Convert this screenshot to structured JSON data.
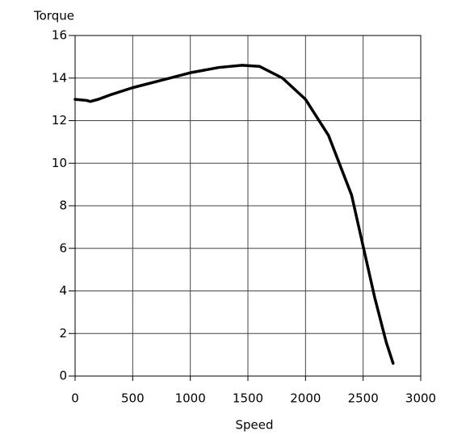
{
  "chart_data": {
    "type": "line",
    "xlabel": "Speed",
    "ylabel": "Torque",
    "x": [
      0,
      100,
      130,
      200,
      300,
      500,
      750,
      1000,
      1250,
      1450,
      1600,
      1800,
      2000,
      2200,
      2400,
      2500,
      2600,
      2700,
      2760
    ],
    "series": [
      {
        "name": "Torque",
        "color": "#000000",
        "values": [
          13.0,
          12.95,
          12.9,
          13.0,
          13.2,
          13.55,
          13.9,
          14.25,
          14.5,
          14.6,
          14.55,
          14.0,
          13.0,
          11.3,
          8.5,
          6.1,
          3.7,
          1.6,
          0.6
        ]
      }
    ],
    "xlim": [
      0,
      3000
    ],
    "xticks": [
      0,
      500,
      1000,
      1500,
      2000,
      2500,
      3000
    ],
    "ylim": [
      0,
      16
    ],
    "yticks": [
      0,
      2,
      4,
      6,
      8,
      10,
      12,
      14,
      16
    ],
    "grid": true
  }
}
